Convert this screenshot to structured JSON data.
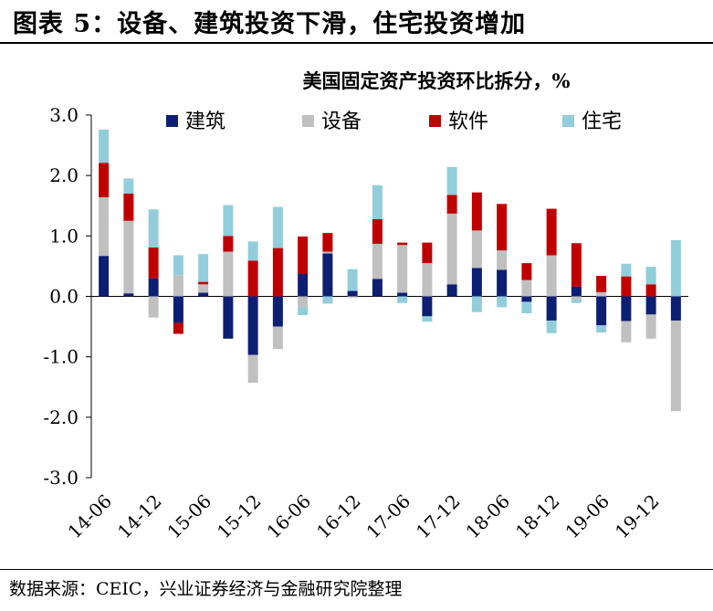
{
  "figure": {
    "title": "图表 5：设备、建筑投资下滑，住宅投资增加",
    "source": "数据来源：CEIC，兴业证券经济与金融研究院整理"
  },
  "chart_data": {
    "type": "bar",
    "stacked": true,
    "title": "美国固定资产投资环比拆分，%",
    "xlabel": "",
    "ylabel": "",
    "ylim": [
      -3.0,
      3.0
    ],
    "yticks": [
      "3.0",
      "2.0",
      "1.0",
      "0.0",
      "-1.0",
      "-2.0",
      "-3.0"
    ],
    "grid": false,
    "legend_position": "top",
    "x_tick_labels": [
      "14-06",
      "14-12",
      "15-06",
      "15-12",
      "16-06",
      "16-12",
      "17-06",
      "17-12",
      "18-06",
      "18-12",
      "19-06",
      "19-12"
    ],
    "categories": [
      "14-06",
      "14-09",
      "14-12",
      "15-03",
      "15-06",
      "15-09",
      "15-12",
      "16-03",
      "16-06",
      "16-09",
      "16-12",
      "17-03",
      "17-06",
      "17-09",
      "17-12",
      "18-03",
      "18-06",
      "18-09",
      "18-12",
      "19-03",
      "19-06",
      "19-09",
      "19-12",
      "20-03"
    ],
    "series": [
      {
        "name": "建筑",
        "color": "#0d1f73",
        "values": [
          0.67,
          0.05,
          0.3,
          -0.44,
          0.06,
          -0.7,
          -0.97,
          -0.5,
          0.37,
          0.71,
          0.09,
          0.29,
          0.06,
          -0.33,
          0.2,
          0.47,
          0.44,
          -0.09,
          -0.4,
          0.16,
          -0.48,
          -0.41,
          -0.3,
          -0.4
        ]
      },
      {
        "name": "设备",
        "color": "#c0c0c0",
        "values": [
          0.97,
          1.2,
          -0.35,
          0.35,
          0.14,
          0.74,
          -0.46,
          -0.37,
          -0.18,
          0.03,
          -0.02,
          0.58,
          0.79,
          0.55,
          1.17,
          0.62,
          0.32,
          0.27,
          0.68,
          -0.06,
          0.07,
          -0.35,
          -0.4,
          -1.5
        ]
      },
      {
        "name": "软件",
        "color": "#c00000",
        "values": [
          0.57,
          0.45,
          0.51,
          -0.18,
          0.04,
          0.26,
          0.59,
          0.8,
          0.62,
          0.31,
          0.0,
          0.41,
          0.04,
          0.34,
          0.31,
          0.63,
          0.77,
          0.28,
          0.77,
          0.72,
          0.27,
          0.33,
          0.2,
          0.0
        ]
      },
      {
        "name": "住宅",
        "color": "#92cddc",
        "values": [
          0.55,
          0.25,
          0.63,
          0.33,
          0.46,
          0.51,
          0.32,
          0.68,
          -0.13,
          -0.12,
          0.36,
          0.56,
          -0.11,
          -0.09,
          0.46,
          -0.26,
          -0.18,
          -0.19,
          -0.21,
          -0.05,
          -0.12,
          0.21,
          0.29,
          0.93
        ]
      }
    ]
  }
}
